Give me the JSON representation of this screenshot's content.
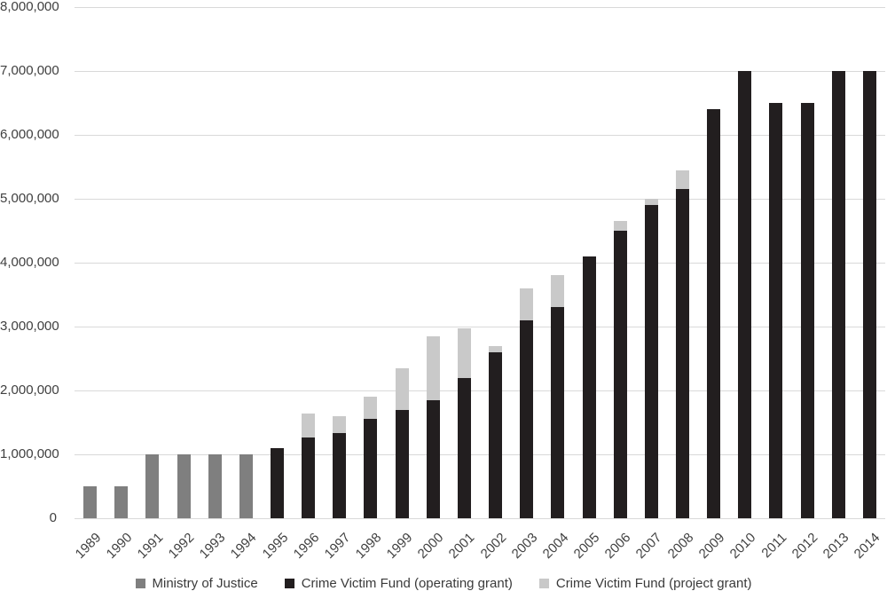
{
  "chart_data": {
    "type": "bar",
    "stacked": true,
    "title": "",
    "xlabel": "",
    "ylabel": "",
    "ylim": [
      0,
      8000000
    ],
    "ytick_step": 1000000,
    "ytick_labels": [
      "0",
      "1,000,000",
      "2,000,000",
      "3,000,000",
      "4,000,000",
      "5,000,000",
      "6,000,000",
      "7,000,000",
      "8,000,000"
    ],
    "grid": "horizontal-only",
    "legend_position": "bottom",
    "categories": [
      "1989",
      "1990",
      "1991",
      "1992",
      "1993",
      "1994",
      "1995",
      "1996",
      "1997",
      "1998",
      "1999",
      "2000",
      "2001",
      "2002",
      "2003",
      "2004",
      "2005",
      "2006",
      "2007",
      "2008",
      "2009",
      "2010",
      "2011",
      "2012",
      "2013",
      "2014"
    ],
    "series": [
      {
        "name": "Ministry of Justice",
        "color": "#7f7f7f",
        "values": [
          500000,
          500000,
          1000000,
          1000000,
          1000000,
          1000000,
          0,
          0,
          0,
          0,
          0,
          0,
          0,
          0,
          0,
          0,
          0,
          0,
          0,
          0,
          0,
          0,
          0,
          0,
          0,
          0
        ]
      },
      {
        "name": "Crime Victim Fund (operating grant)",
        "color": "#221e1f",
        "values": [
          0,
          0,
          0,
          0,
          0,
          0,
          1100000,
          1270000,
          1330000,
          1550000,
          1700000,
          1850000,
          2200000,
          2600000,
          3100000,
          3300000,
          4100000,
          4500000,
          4900000,
          5150000,
          6400000,
          7000000,
          6500000,
          6500000,
          7000000,
          7000000
        ]
      },
      {
        "name": "Crime Victim Fund (project grant)",
        "color": "#c9c9c9",
        "values": [
          0,
          0,
          0,
          0,
          0,
          0,
          0,
          370000,
          270000,
          350000,
          650000,
          1000000,
          770000,
          100000,
          500000,
          500000,
          0,
          150000,
          100000,
          300000,
          0,
          0,
          0,
          0,
          0,
          0
        ]
      }
    ],
    "colors": {
      "gridline": "#d9d9d9",
      "axis_text": "#404040",
      "background": "#ffffff"
    }
  }
}
